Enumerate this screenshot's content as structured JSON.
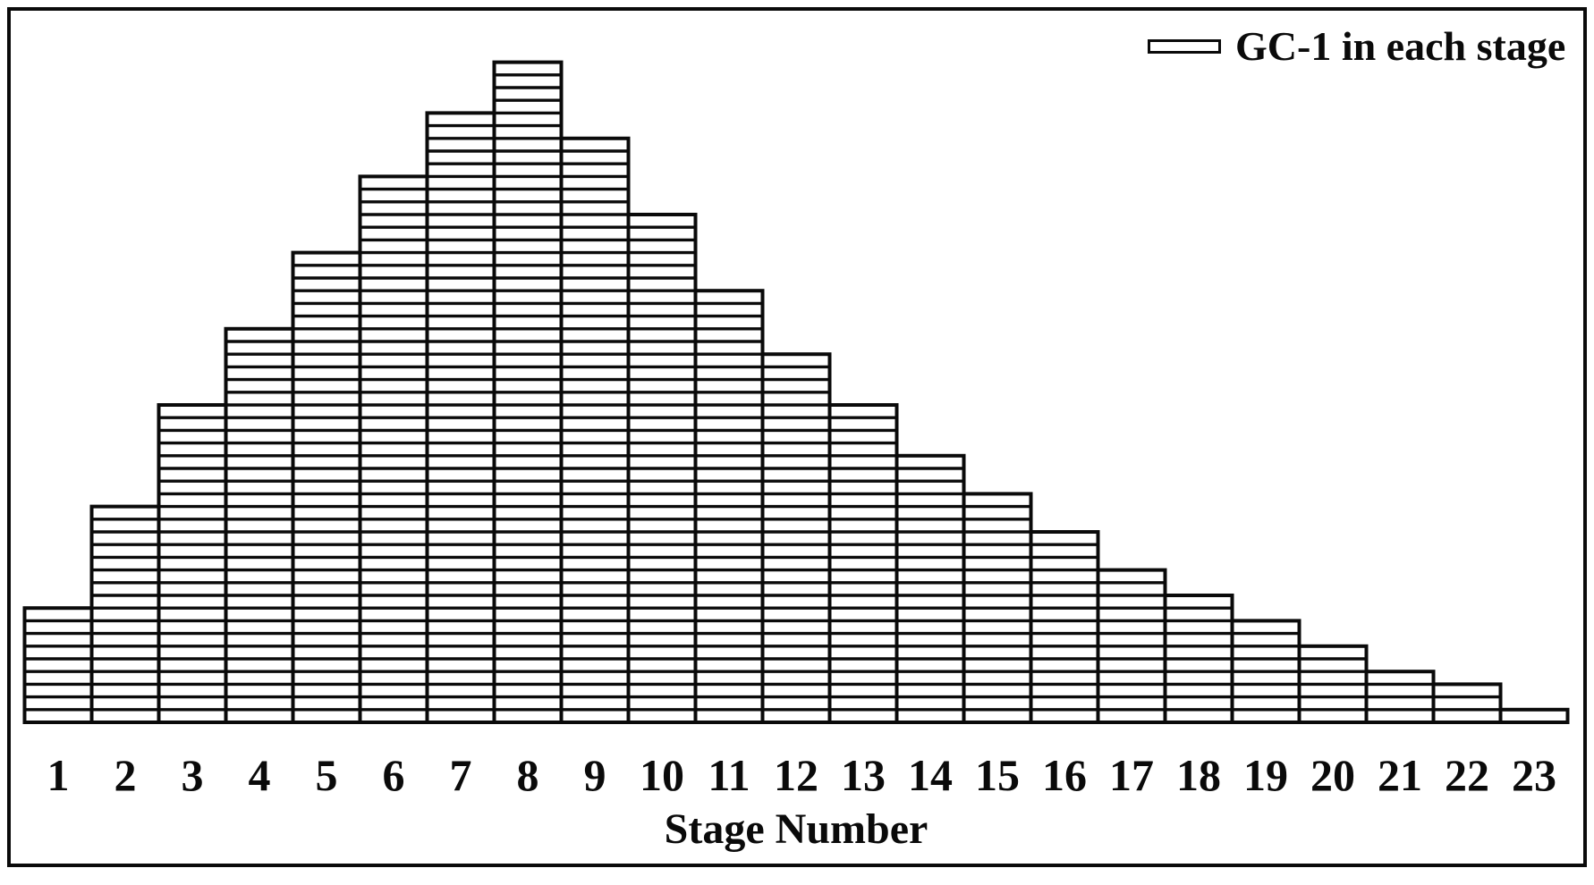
{
  "figure": {
    "background": "#ffffff",
    "border_color": "#0a0a0a"
  },
  "legend": {
    "label": "GC-1 in each stage",
    "swatch": "horizontal-hatch-bar",
    "position": "top-right"
  },
  "x_axis": {
    "title": "Stage Number",
    "tick_labels": [
      "1",
      "2",
      "3",
      "4",
      "5",
      "6",
      "7",
      "8",
      "9",
      "10",
      "11",
      "12",
      "13",
      "14",
      "15",
      "16",
      "17",
      "18",
      "19",
      "20",
      "21",
      "22",
      "23"
    ]
  },
  "chart_data": {
    "type": "bar",
    "title": "",
    "xlabel": "Stage Number",
    "ylabel": "",
    "series_name": "GC-1 in each stage",
    "categories": [
      "1",
      "2",
      "3",
      "4",
      "5",
      "6",
      "7",
      "8",
      "9",
      "10",
      "11",
      "12",
      "13",
      "14",
      "15",
      "16",
      "17",
      "18",
      "19",
      "20",
      "21",
      "22",
      "23"
    ],
    "values": [
      9,
      17,
      25,
      31,
      37,
      43,
      48,
      52,
      46,
      40,
      34,
      29,
      25,
      21,
      18,
      15,
      12,
      10,
      8,
      6,
      4,
      3,
      1
    ],
    "units": "hatch rows (no y-axis shown; bar heights relative)",
    "ylim": [
      0,
      56
    ],
    "grid": false,
    "legend_position": "top-right",
    "bar_fill": "#ffffff",
    "bar_stroke": "#0a0a0a",
    "hatch": "horizontal"
  }
}
